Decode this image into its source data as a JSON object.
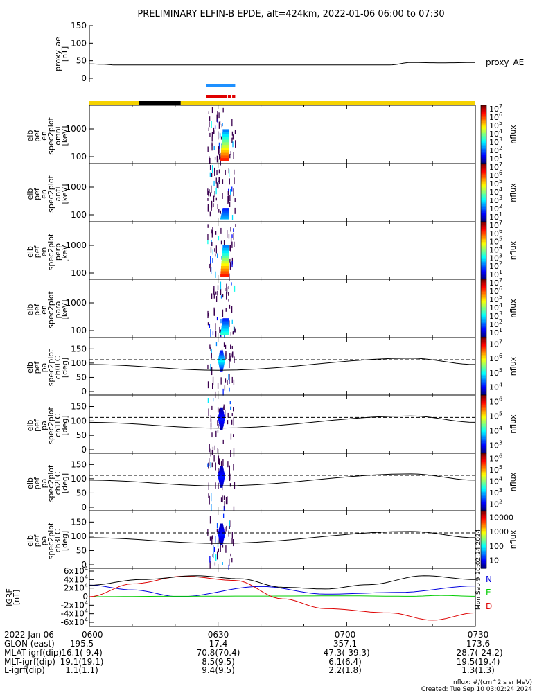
{
  "title": "PRELIMINARY ELFIN-B EPDE, alt=424km, 2022-01-06 06:00 to 07:30",
  "colors": {
    "yellow": "#f5d200",
    "black": "#000000",
    "blue_bar": "#1e90ff",
    "red_bar": "#e00000",
    "grf_n": "#0000dd",
    "grf_e": "#00cc00",
    "grf_d": "#dd0000"
  },
  "chart_data": [
    {
      "type": "line",
      "id": "proxy_ae",
      "ylabel": [
        "proxy_ae",
        "[nT]"
      ],
      "ylim": [
        0,
        150
      ],
      "yticks": [
        "0",
        "50",
        "100",
        "150"
      ],
      "legend": "proxy_AE",
      "x_minutes": [
        0,
        3,
        6,
        30,
        60,
        70,
        75,
        82,
        90
      ],
      "values": [
        41,
        40,
        38,
        38,
        38,
        38,
        45,
        44,
        45
      ]
    },
    {
      "type": "bar",
      "id": "status_bar",
      "segments": [
        {
          "start": 0,
          "end": 11.5,
          "color": "yellow"
        },
        {
          "start": 11.5,
          "end": 21.3,
          "color": "black"
        },
        {
          "start": 21.3,
          "end": 90,
          "color": "yellow"
        }
      ],
      "blue_markers": [
        [
          27.3,
          34.0
        ]
      ],
      "red_markers": [
        [
          27.3,
          32.0
        ],
        [
          32.3,
          33.0
        ],
        [
          33.3,
          34.0
        ]
      ]
    },
    {
      "type": "heatmap",
      "id": "spec_omni",
      "ylabel": [
        "elb",
        "pef",
        "en",
        "spec2plot",
        "omni",
        "[keV]"
      ],
      "yticks": [
        "100",
        "1000"
      ],
      "colorbar_ticks": [
        "10^1",
        "10^2",
        "10^3",
        "10^4",
        "10^5",
        "10^6",
        "10^7"
      ],
      "colorbar_label": "nflux",
      "active_interval_min": [
        27.5,
        34.0
      ]
    },
    {
      "type": "heatmap",
      "id": "spec_anti",
      "ylabel": [
        "elb",
        "pef",
        "en",
        "spec2plot",
        "anti",
        "[keV]"
      ],
      "yticks": [
        "100",
        "1000"
      ],
      "colorbar_ticks": [
        "10^1",
        "10^2",
        "10^3",
        "10^4",
        "10^5",
        "10^6",
        "10^7"
      ],
      "colorbar_label": "nflux",
      "active_interval_min": [
        27.5,
        34.0
      ]
    },
    {
      "type": "heatmap",
      "id": "spec_perp",
      "ylabel": [
        "elb",
        "pef",
        "en",
        "spec2plot",
        "perp",
        "[keV]"
      ],
      "yticks": [
        "100",
        "1000"
      ],
      "colorbar_ticks": [
        "10^1",
        "10^2",
        "10^3",
        "10^4",
        "10^5",
        "10^6",
        "10^7"
      ],
      "colorbar_label": "nflux",
      "active_interval_min": [
        27.5,
        34.0
      ]
    },
    {
      "type": "heatmap",
      "id": "spec_para",
      "ylabel": [
        "elb",
        "pef",
        "en",
        "spec2plot",
        "para",
        "[keV]"
      ],
      "yticks": [
        "100",
        "1000"
      ],
      "colorbar_ticks": [
        "10^1",
        "10^2",
        "10^3",
        "10^4",
        "10^5",
        "10^6",
        "10^7"
      ],
      "colorbar_label": "nflux",
      "active_interval_min": [
        27.5,
        34.0
      ]
    },
    {
      "type": "heatmap",
      "id": "pa_ch0",
      "ylabel": [
        "elb",
        "pef",
        "pa",
        "spec2plot",
        "ch0LC",
        "[deg]"
      ],
      "yticks": [
        "0",
        "50",
        "100",
        "150"
      ],
      "colorbar_ticks": [
        "10^4",
        "10^5",
        "10^6",
        "10^7"
      ],
      "colorbar_label": "nflux",
      "active_interval_min": [
        27.5,
        34.0
      ],
      "lc_x_min": [
        0,
        30,
        75,
        90
      ],
      "lc_solid": [
        95,
        75,
        117,
        95
      ],
      "lc_dashed": 112
    },
    {
      "type": "heatmap",
      "id": "pa_ch1",
      "ylabel": [
        "elb",
        "pef",
        "pa",
        "spec2plot",
        "ch1LC",
        "[deg]"
      ],
      "yticks": [
        "0",
        "50",
        "100",
        "150"
      ],
      "colorbar_ticks": [
        "10^3",
        "10^4",
        "10^5",
        "10^6"
      ],
      "colorbar_label": "nflux",
      "active_interval_min": [
        27.5,
        34.0
      ],
      "lc_x_min": [
        0,
        30,
        75,
        90
      ],
      "lc_solid": [
        95,
        75,
        117,
        95
      ],
      "lc_dashed": 112
    },
    {
      "type": "heatmap",
      "id": "pa_ch2",
      "ylabel": [
        "elb",
        "pef",
        "pa",
        "spec2plot",
        "ch2LC",
        "[deg]"
      ],
      "yticks": [
        "0",
        "50",
        "100",
        "150"
      ],
      "colorbar_ticks": [
        "10^2",
        "10^3",
        "10^4",
        "10^5",
        "10^6"
      ],
      "colorbar_label": "nflux",
      "active_interval_min": [
        27.5,
        34.0
      ],
      "lc_x_min": [
        0,
        30,
        75,
        90
      ],
      "lc_solid": [
        95,
        75,
        117,
        95
      ],
      "lc_dashed": 112
    },
    {
      "type": "heatmap",
      "id": "pa_ch3",
      "ylabel": [
        "elb",
        "pef",
        "pa",
        "spec2plot",
        "ch3LC",
        "[deg]"
      ],
      "yticks": [
        "0",
        "50",
        "100",
        "150"
      ],
      "colorbar_ticks": [
        "10",
        "100",
        "1000",
        "10000"
      ],
      "colorbar_label": "nflux",
      "active_interval_min": [
        27.5,
        34.0
      ],
      "lc_x_min": [
        0,
        30,
        75,
        90
      ],
      "lc_solid": [
        95,
        75,
        117,
        95
      ],
      "lc_dashed": 112
    },
    {
      "type": "line",
      "id": "igrf",
      "ylabel": [
        "IGRF",
        "[nT]"
      ],
      "ylim": [
        -60000,
        60000
      ],
      "yticks": [
        "6x10^4",
        "4x10^4",
        "2x10^4",
        "0",
        "-2x10^4",
        "-4x10^4",
        "-6x10^4"
      ],
      "series": [
        {
          "name": "N",
          "color_key": "grf_n",
          "x_minutes": [
            0,
            10,
            21,
            40,
            55,
            72,
            90
          ],
          "values": [
            27000,
            16000,
            0,
            24000,
            6000,
            10000,
            25000
          ]
        },
        {
          "name": "E",
          "color_key": "grf_e",
          "x_minutes": [
            0,
            20,
            40,
            60,
            75,
            82,
            90
          ],
          "values": [
            0,
            1000,
            1500,
            2000,
            1000,
            3000,
            1000
          ]
        },
        {
          "name": "D",
          "color_key": "grf_d",
          "x_minutes": [
            0,
            10,
            22,
            34,
            45,
            55,
            70,
            80,
            90
          ],
          "values": [
            0,
            30000,
            48000,
            38000,
            -5000,
            -28000,
            -38000,
            -55000,
            -38000
          ]
        },
        {
          "name": "",
          "color_key": "black",
          "x_minutes": [
            0,
            12,
            25,
            35,
            45,
            55,
            65,
            78,
            90
          ],
          "values": [
            27000,
            40000,
            49000,
            42000,
            22000,
            18000,
            28000,
            49000,
            40000
          ]
        }
      ]
    }
  ],
  "time_axis": {
    "labels": [
      "0600",
      "0630",
      "0700",
      "0730"
    ],
    "label_minutes": [
      0,
      30,
      60,
      90
    ]
  },
  "footer": {
    "rows": [
      {
        "label": "2022 Jan 06",
        "values": [
          "0600",
          "0630",
          "0700",
          "0730"
        ]
      },
      {
        "label": "GLON (east)",
        "values": [
          "195.5",
          "17.4",
          "357.1",
          "173.6"
        ]
      },
      {
        "label": "MLAT-igrf(dip)",
        "values": [
          "16.1(-9.4)",
          "70.8(70.4)",
          "-47.3(-39.3)",
          "-28.7(-24.2)"
        ]
      },
      {
        "label": "MLT-igrf(dip)",
        "values": [
          "19.1(19.1)",
          "8.5(9.5)",
          "6.1(6.4)",
          "19.5(19.4)"
        ]
      },
      {
        "label": "L-igrf(dip)",
        "values": [
          "1.1(1.1)",
          "9.4(9.5)",
          "2.2(1.8)",
          "1.3(1.3)"
        ]
      }
    ],
    "units_note": "nflux: #/(cm^2 s sr MeV)",
    "created": "Created: Tue Sep 10 03:02:24 2024",
    "side_stamp": "Mon Sep  9 20:02:24 2024"
  }
}
